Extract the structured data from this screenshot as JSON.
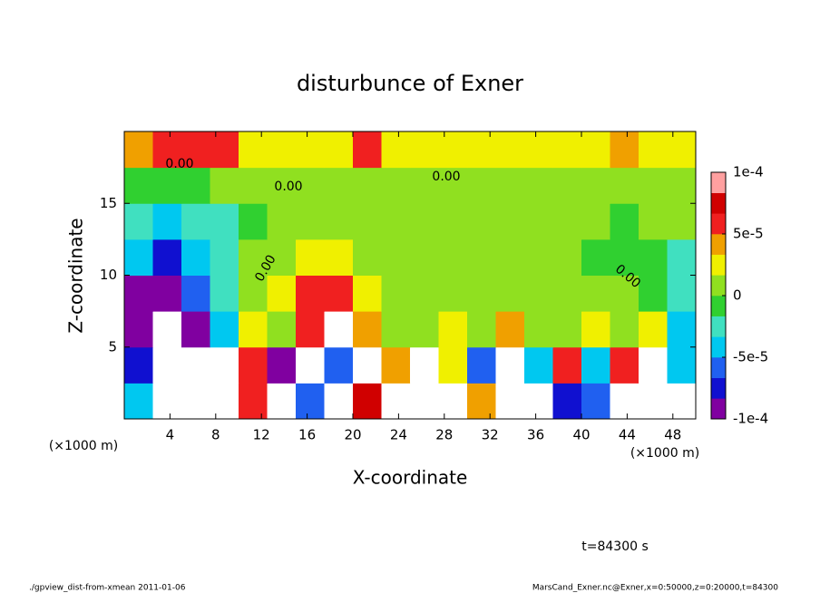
{
  "chart_data": {
    "type": "contour",
    "title": "disturbunce of Exner",
    "xlabel": "X-coordinate",
    "ylabel": "Z-coordinate",
    "x_unit": "(×1000 m)",
    "y_unit": "(×1000 m)",
    "time_label": "t=84300 s",
    "footer_left": "./gpview_dist-from-xmean  2011-01-06",
    "footer_right": "MarsCand_Exner.nc@Exner,x=0:50000,z=0:20000,t=84300",
    "contour_labels": [
      "0.00",
      "0.00",
      "0.00",
      "0.00",
      "0.00"
    ],
    "xlim": [
      0,
      50
    ],
    "ylim": [
      0,
      20
    ],
    "xticks": [
      4,
      8,
      12,
      16,
      20,
      24,
      28,
      32,
      36,
      40,
      44,
      48
    ],
    "yticks": [
      5,
      10,
      15
    ],
    "clim": [
      -0.0001,
      0.0001
    ],
    "cticks": [
      {
        "value": 0.0001,
        "label": "1e-4"
      },
      {
        "value": 5e-05,
        "label": "5e-5"
      },
      0,
      {
        "value": -5e-05,
        "label": "-5e-5"
      },
      {
        "value": -0.0001,
        "label": "-1e-4"
      }
    ],
    "colormap": [
      "#8000a0",
      "#1010d0",
      "#2060f0",
      "#00c8f0",
      "#40e0c0",
      "#30d030",
      "#90e020",
      "#f0f000",
      "#f0a000",
      "#f02020",
      "#d00000",
      "#ffa0a0"
    ],
    "z": [
      [
        -5e-05,
        -0.00015,
        -0.00015,
        -0.00012,
        6e-05,
        -0.00012,
        -6e-05,
        -0.00012,
        8e-05,
        -0.00012,
        -0.00012,
        -0.00012,
        4e-05,
        -0.00015,
        -0.00015,
        -8e-05,
        -6e-05,
        -0.00012,
        -0.00012,
        -0.00012
      ],
      [
        -8e-05,
        -0.00015,
        -0.00015,
        -0.00012,
        5e-05,
        -9e-05,
        -0.00012,
        -6e-05,
        -0.00012,
        4e-05,
        -0.00012,
        2e-05,
        -6e-05,
        -0.00012,
        -4e-05,
        5e-05,
        -4e-05,
        5e-05,
        -0.00012,
        -5e-05
      ],
      [
        -9e-05,
        -0.00012,
        -9e-05,
        -4e-05,
        2e-05,
        1e-05,
        6e-05,
        -0.00012,
        4e-05,
        1e-05,
        1e-05,
        2e-05,
        1e-05,
        4e-05,
        1e-05,
        1e-05,
        2e-05,
        1e-05,
        3e-05,
        -4e-05
      ],
      [
        -9e-05,
        -0.0001,
        -6e-05,
        -3e-05,
        0,
        2e-05,
        5e-05,
        6e-05,
        2e-05,
        1e-05,
        0,
        1e-05,
        1e-05,
        1e-05,
        0,
        1e-05,
        0,
        0,
        -1e-05,
        -3e-05
      ],
      [
        -5e-05,
        -8e-05,
        -4e-05,
        -2e-05,
        0,
        1e-05,
        2e-05,
        2e-05,
        1e-05,
        0,
        0,
        0,
        0,
        0,
        0,
        0,
        -1e-05,
        -1e-05,
        -1e-05,
        -2e-05
      ],
      [
        -3e-05,
        -4e-05,
        -3e-05,
        -2e-05,
        -1e-05,
        0,
        0,
        0,
        0,
        0,
        0,
        0,
        0,
        0,
        0,
        0,
        0,
        -1e-05,
        0,
        0
      ],
      [
        -1e-05,
        -1e-05,
        -1e-05,
        0,
        0,
        0,
        1e-05,
        0,
        0,
        0,
        0,
        0,
        1e-05,
        1e-05,
        0,
        0,
        0,
        0,
        1e-05,
        1e-05
      ],
      [
        4e-05,
        5e-05,
        6e-05,
        5e-05,
        3e-05,
        2e-05,
        3e-05,
        2e-05,
        5e-05,
        3e-05,
        2e-05,
        2e-05,
        3e-05,
        3e-05,
        3e-05,
        2e-05,
        3e-05,
        4e-05,
        3e-05,
        3e-05
      ]
    ]
  }
}
